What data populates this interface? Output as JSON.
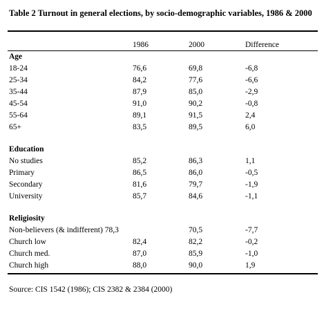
{
  "title": "Table 2 Turnout in general elections, by socio-demographic variables, 1986 & 2000",
  "headers": [
    "1986",
    "2000",
    "Difference"
  ],
  "sections": [
    {
      "name": "Age",
      "rows": [
        [
          "18-24",
          "76,6",
          "69,8",
          "-6,8"
        ],
        [
          "25-34",
          "84,2",
          "77,6",
          "-6,6"
        ],
        [
          "35-44",
          "87,9",
          "85,0",
          "-2,9"
        ],
        [
          "45-54",
          "91,0",
          "90,2",
          "-0,8"
        ],
        [
          "55-64",
          "89,1",
          "91,5",
          "2,4"
        ],
        [
          "65+",
          "83,5",
          "89,5",
          "6,0"
        ]
      ]
    },
    {
      "name": "Education",
      "rows": [
        [
          "No studies",
          "85,2",
          "86,3",
          "1,1"
        ],
        [
          "Primary",
          "86,5",
          "86,0",
          "-0,5"
        ],
        [
          "Secondary",
          "81,6",
          "79,7",
          "-1,9"
        ],
        [
          "University",
          "85,7",
          "84,6",
          "-1,1"
        ]
      ]
    },
    {
      "name": "Religiosity",
      "rows": [
        [
          "Non-believers (& indifferent) 78,3",
          "",
          "70,5",
          "-7,7"
        ],
        [
          "Church low",
          "82,4",
          "82,2",
          "-0,2"
        ],
        [
          "Church med.",
          "87,0",
          "85,9",
          "-1,0"
        ],
        [
          "Church high",
          "88,0",
          "90,0",
          "1,9"
        ]
      ]
    }
  ],
  "source": "Source: CIS 1542 (1986); CIS 2382 & 2384 (2000)"
}
